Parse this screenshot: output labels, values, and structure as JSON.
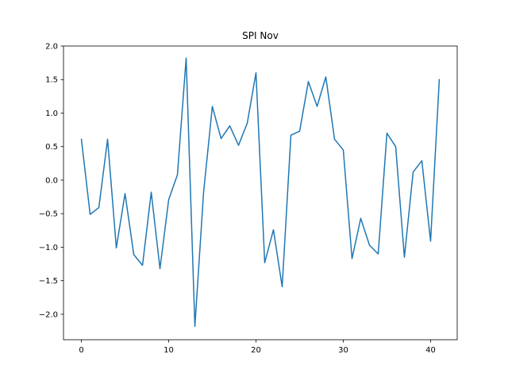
{
  "chart_data": {
    "type": "line",
    "title": "SPI Nov",
    "xlabel": "",
    "ylabel": "",
    "xlim": [
      -2.05,
      43.05
    ],
    "ylim": [
      -2.38,
      2.0
    ],
    "x_ticks": [
      0,
      10,
      20,
      30,
      40
    ],
    "y_ticks": [
      -2.0,
      -1.5,
      -1.0,
      -0.5,
      0.0,
      0.5,
      1.0,
      1.5,
      2.0
    ],
    "x_tick_labels": [
      "0",
      "10",
      "20",
      "30",
      "40"
    ],
    "y_tick_labels": [
      "−2.0",
      "−1.5",
      "−1.0",
      "−0.5",
      "0.0",
      "0.5",
      "1.0",
      "1.5",
      "2.0"
    ],
    "grid": false,
    "line_color": "#1f77b4",
    "series": [
      {
        "x": [
          0,
          1,
          2,
          3,
          4,
          5,
          6,
          7,
          8,
          9,
          10,
          11,
          12,
          13,
          14,
          15,
          16,
          17,
          18,
          19,
          20,
          21,
          22,
          23,
          24,
          25,
          26,
          27,
          28,
          29,
          30,
          31,
          32,
          33,
          34,
          35,
          36,
          37,
          38,
          39,
          40,
          41
        ],
        "values": [
          0.61,
          -0.51,
          -0.41,
          0.61,
          -1.01,
          -0.2,
          -1.11,
          -1.27,
          -0.18,
          -1.32,
          -0.29,
          0.08,
          1.82,
          -2.18,
          -0.18,
          1.1,
          0.62,
          0.81,
          0.52,
          0.85,
          1.6,
          -1.23,
          -0.74,
          -1.59,
          0.67,
          0.73,
          1.47,
          1.1,
          1.54,
          0.61,
          0.45,
          -1.17,
          -0.57,
          -0.97,
          -1.1,
          0.7,
          0.5,
          -1.15,
          0.12,
          0.29,
          -0.91,
          1.5
        ]
      }
    ]
  }
}
